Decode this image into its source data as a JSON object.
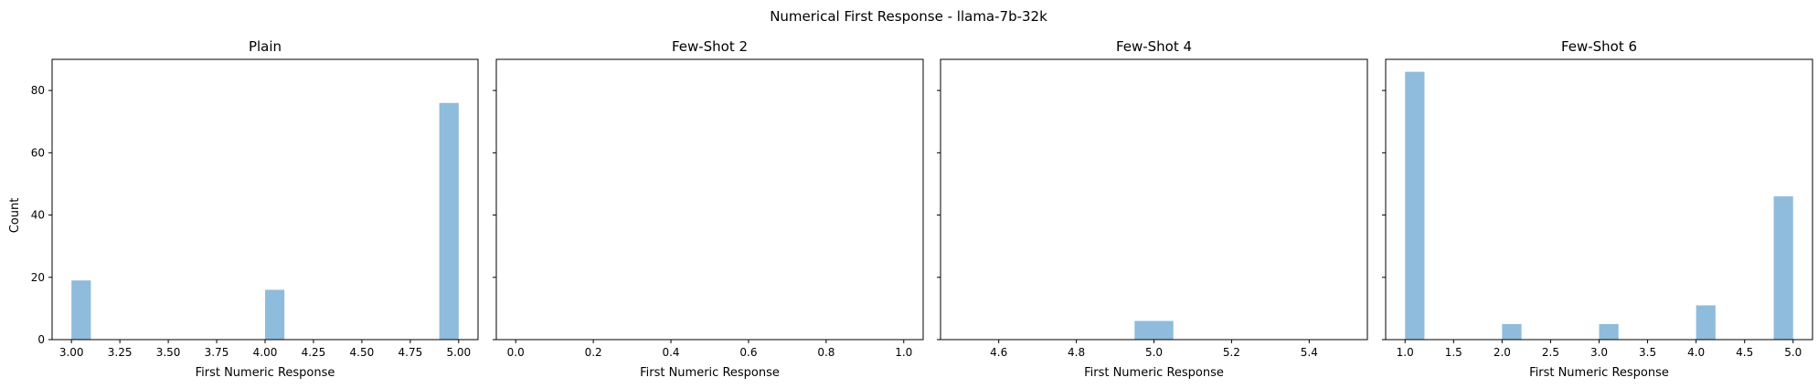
{
  "figure_title": "Numerical First Response - llama-7b-32k",
  "shared_ylabel": "Count",
  "colors": {
    "bar": "#8fbcdc",
    "axis": "#000000"
  },
  "chart_data": [
    {
      "type": "bar",
      "title": "Plain",
      "xlabel": "First Numeric Response",
      "ylabel": "Count",
      "xlim": [
        2.9,
        5.1
      ],
      "ylim": [
        0,
        90
      ],
      "xticks": [
        "3.00",
        "3.25",
        "3.50",
        "3.75",
        "4.00",
        "4.25",
        "4.50",
        "4.75",
        "5.00"
      ],
      "xtick_values": [
        3.0,
        3.25,
        3.5,
        3.75,
        4.0,
        4.25,
        4.5,
        4.75,
        5.0
      ],
      "yticks": [
        0,
        20,
        40,
        60,
        80
      ],
      "bins": [
        {
          "x0": 3.0,
          "x1": 3.1,
          "count": 19
        },
        {
          "x0": 4.0,
          "x1": 4.1,
          "count": 16
        },
        {
          "x0": 4.9,
          "x1": 5.0,
          "count": 76
        }
      ]
    },
    {
      "type": "bar",
      "title": "Few-Shot 2",
      "xlabel": "First Numeric Response",
      "xlim": [
        -0.05,
        1.05
      ],
      "ylim": [
        0,
        90
      ],
      "xticks": [
        "0.0",
        "0.2",
        "0.4",
        "0.6",
        "0.8",
        "1.0"
      ],
      "xtick_values": [
        0.0,
        0.2,
        0.4,
        0.6,
        0.8,
        1.0
      ],
      "yticks": [
        0,
        20,
        40,
        60,
        80
      ],
      "bins": []
    },
    {
      "type": "bar",
      "title": "Few-Shot 4",
      "xlabel": "First Numeric Response",
      "xlim": [
        4.45,
        5.55
      ],
      "ylim": [
        0,
        90
      ],
      "xticks": [
        "4.6",
        "4.8",
        "5.0",
        "5.2",
        "5.4"
      ],
      "xtick_values": [
        4.6,
        4.8,
        5.0,
        5.2,
        5.4
      ],
      "yticks": [
        0,
        20,
        40,
        60,
        80
      ],
      "bins": [
        {
          "x0": 4.95,
          "x1": 5.05,
          "count": 6
        }
      ]
    },
    {
      "type": "bar",
      "title": "Few-Shot 6",
      "xlabel": "First Numeric Response",
      "xlim": [
        0.8,
        5.2
      ],
      "ylim": [
        0,
        90
      ],
      "xticks": [
        "1.0",
        "1.5",
        "2.0",
        "2.5",
        "3.0",
        "3.5",
        "4.0",
        "4.5",
        "5.0"
      ],
      "xtick_values": [
        1.0,
        1.5,
        2.0,
        2.5,
        3.0,
        3.5,
        4.0,
        4.5,
        5.0
      ],
      "yticks": [
        0,
        20,
        40,
        60,
        80
      ],
      "bins": [
        {
          "x0": 1.0,
          "x1": 1.2,
          "count": 86
        },
        {
          "x0": 2.0,
          "x1": 2.2,
          "count": 5
        },
        {
          "x0": 3.0,
          "x1": 3.2,
          "count": 5
        },
        {
          "x0": 4.0,
          "x1": 4.2,
          "count": 11
        },
        {
          "x0": 4.8,
          "x1": 5.0,
          "count": 46
        }
      ]
    }
  ]
}
